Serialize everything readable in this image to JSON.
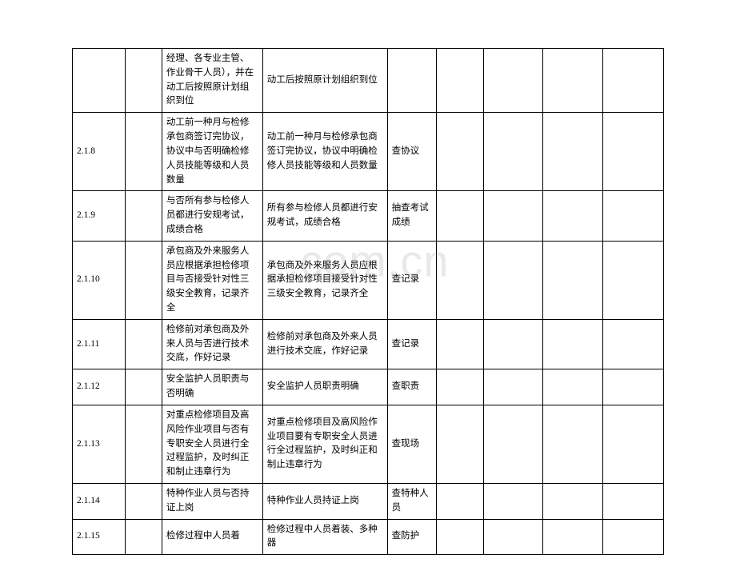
{
  "watermark": ".com.cn",
  "rows": [
    {
      "id": "",
      "b": "经理、各专业主管、作业骨干人员），并在动工后按照原计划组织到位",
      "c": "动工后按照原计划组织到位",
      "d": ""
    },
    {
      "id": "2.1.8",
      "b": "动工前一种月与检修承包商签订完协议，协议中与否明确检修人员技能等级和人员数量",
      "c": "动工前一种月与检修承包商签订完协议，协议中明确检修人员技能等级和人员数量",
      "d": "查协议"
    },
    {
      "id": "2.1.9",
      "b": "与否所有参与检修人员都进行安规考试，成绩合格",
      "c": "所有参与检修人员都进行安规考试，成绩合格",
      "d": "抽查考试成绩"
    },
    {
      "id": "2.1.10",
      "b": "承包商及外来服务人员应根据承担检修项目与否接受针对性三级安全教育，记录齐全",
      "c": "承包商及外来服务人员应根据承担检修项目接受针对性三级安全教育，记录齐全",
      "d": "查记录"
    },
    {
      "id": "2.1.11",
      "b": "检修前对承包商及外来人员与否进行技术交底，作好记录",
      "c": "检修前对承包商及外来人员进行技术交底，作好记录",
      "d": "查记录"
    },
    {
      "id": "2.1.12",
      "b": "安全监护人员职责与否明确",
      "c": "安全监护人员职责明确",
      "d": "查职责"
    },
    {
      "id": "2.1.13",
      "b": "对重点检修项目及高风险作业项目与否有专职安全人员进行全过程监护，及时纠正和制止违章行为",
      "c": "对重点检修项目及高风险作业项目要有专职安全人员进行全过程监护，及时纠正和制止违章行为",
      "d": "查现场"
    },
    {
      "id": "2.1.14",
      "b": "特种作业人员与否持证上岗",
      "c": "特种作业人员持证上岗",
      "d": "查特种人员"
    },
    {
      "id": "2.1.15",
      "b": "检修过程中人员着",
      "c": "检修过程中人员着装、多种器",
      "d": "查防护"
    }
  ]
}
